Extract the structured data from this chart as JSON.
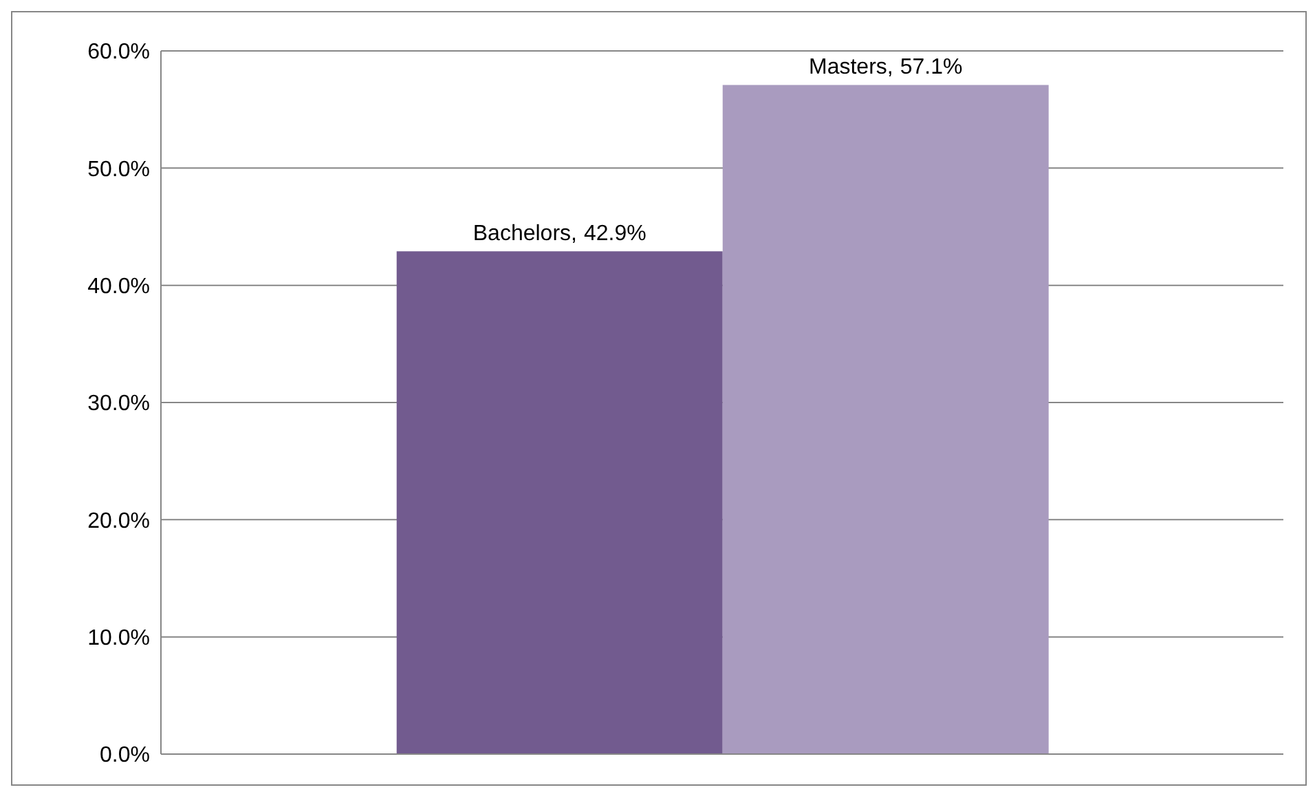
{
  "chart_data": {
    "type": "bar",
    "categories": [
      null
    ],
    "series": [
      {
        "name": "Bachelors,",
        "color": "#725b8f",
        "values": [
          42.9
        ],
        "value_labels": [
          "42.9%"
        ]
      },
      {
        "name": "Masters,",
        "color": "#a99bbf",
        "values": [
          57.1
        ],
        "value_labels": [
          "57.1%"
        ]
      }
    ],
    "ylim": [
      0,
      60
    ],
    "yticks": [
      {
        "value": 0,
        "label": "0.0%"
      },
      {
        "value": 10,
        "label": "10.0%"
      },
      {
        "value": 20,
        "label": "20.0%"
      },
      {
        "value": 30,
        "label": "30.0%"
      },
      {
        "value": 40,
        "label": "40.0%"
      },
      {
        "value": 50,
        "label": "50.0%"
      },
      {
        "value": 60,
        "label": "60.0%"
      }
    ],
    "grid": "y",
    "legend": false
  }
}
